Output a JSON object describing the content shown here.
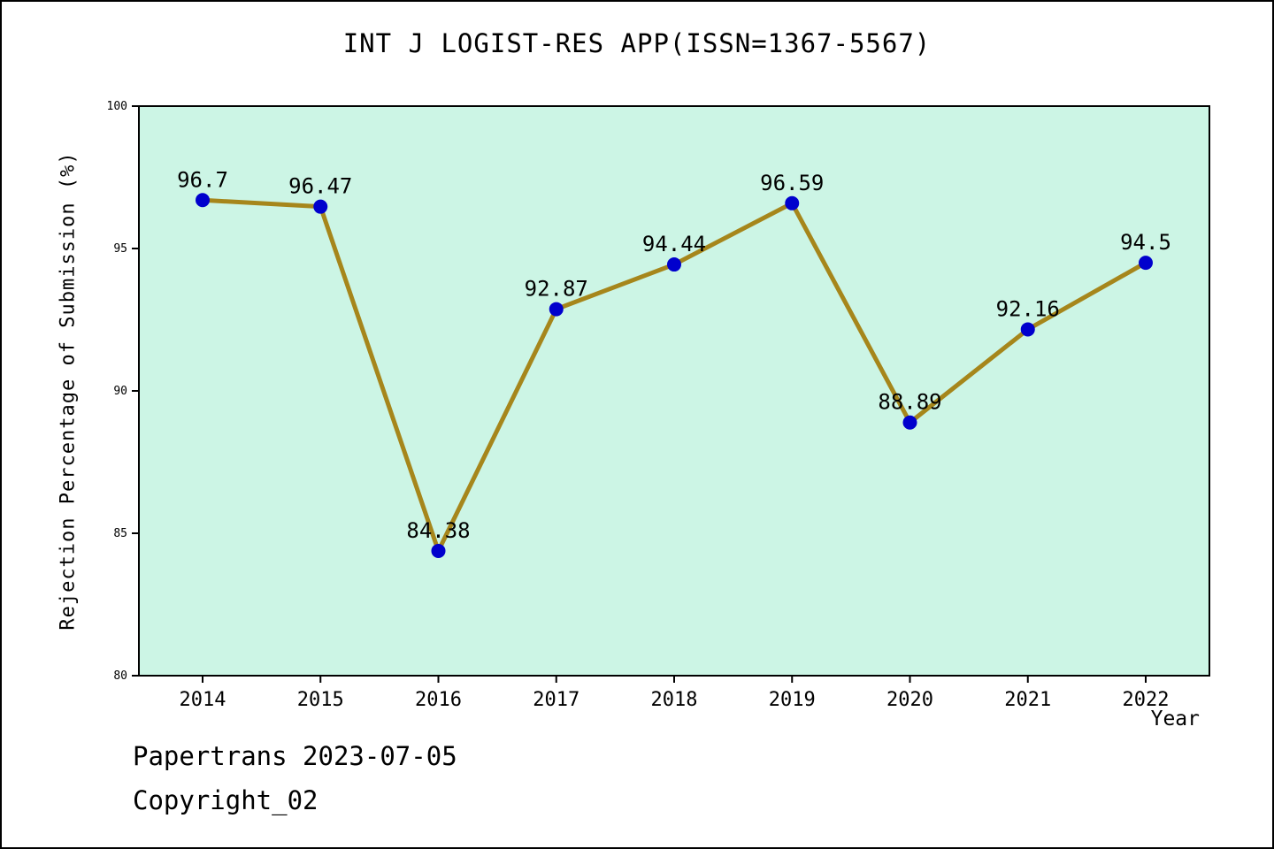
{
  "chart_data": {
    "type": "line",
    "title": "INT J LOGIST-RES APP(ISSN=1367-5567)",
    "xlabel": "Year",
    "ylabel": "Rejection Percentage of Submission (%)",
    "x": [
      2014,
      2015,
      2016,
      2017,
      2018,
      2019,
      2020,
      2021,
      2022
    ],
    "values": [
      96.7,
      96.47,
      84.38,
      92.87,
      94.44,
      96.59,
      88.89,
      92.16,
      94.5
    ],
    "point_labels": [
      "96.7",
      "96.47",
      "84.38",
      "92.87",
      "94.44",
      "96.59",
      "88.89",
      "92.16",
      "94.5"
    ],
    "ylim": [
      80,
      100
    ],
    "yticks": [
      80,
      85,
      90,
      95,
      100
    ],
    "grid": false,
    "legend_position": "none",
    "colors": {
      "line": "#a6861b",
      "marker": "#0000cd",
      "plot_bg": "#ccf5e5",
      "axis": "#000000",
      "text": "#000000"
    }
  },
  "footer": {
    "line1": "Papertrans 2023-07-05",
    "line2": "Copyright_02"
  }
}
